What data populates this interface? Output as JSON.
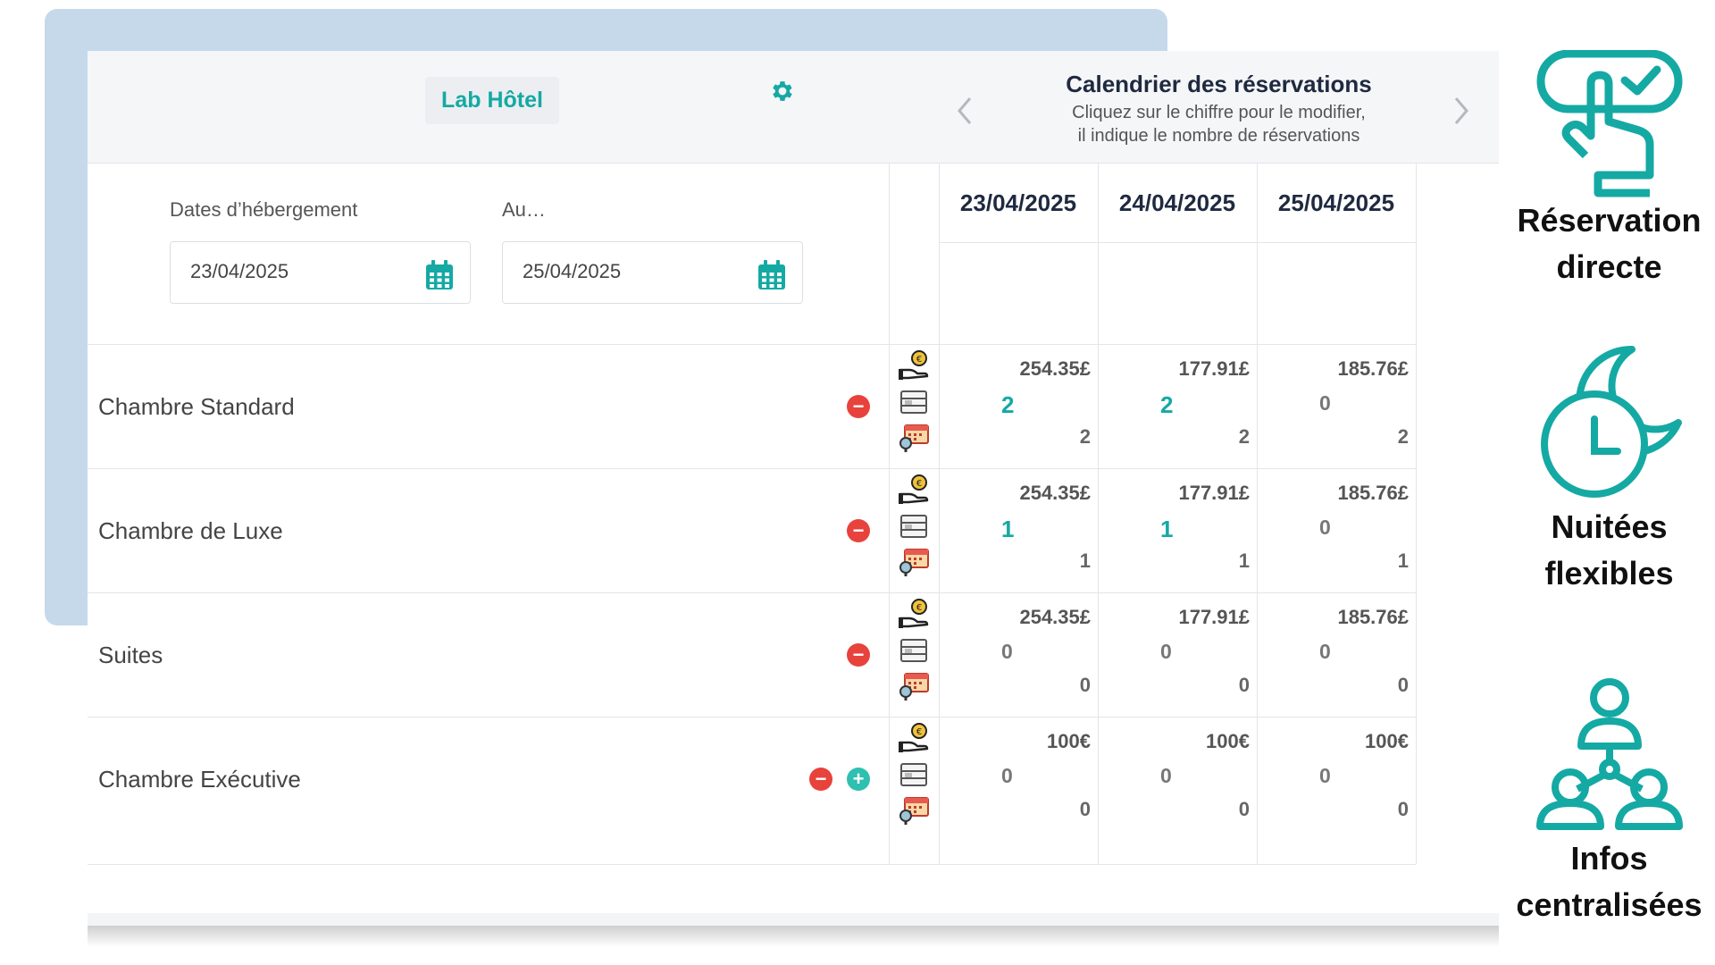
{
  "header": {
    "hotel_name": "Lab Hôtel",
    "calendar_title": "Calendrier des réservations",
    "calendar_subtitle_1": "Cliquez sur le chiffre pour le modifier,",
    "calendar_subtitle_2": "il indique le nombre de réservations"
  },
  "dates": {
    "from_label": "Dates d’hébergement",
    "from_value": "23/04/2025",
    "to_label": "Au…",
    "to_value": "25/04/2025"
  },
  "columns": [
    "23/04/2025",
    "24/04/2025",
    "25/04/2025"
  ],
  "rooms": [
    {
      "name": "Chambre Standard",
      "cells": [
        {
          "price": "254.35£",
          "count": "2",
          "total": "2"
        },
        {
          "price": "177.91£",
          "count": "2",
          "total": "2"
        },
        {
          "price": "185.76£",
          "count": "0",
          "total": "2"
        }
      ]
    },
    {
      "name": "Chambre de Luxe",
      "cells": [
        {
          "price": "254.35£",
          "count": "1",
          "total": "1"
        },
        {
          "price": "177.91£",
          "count": "1",
          "total": "1"
        },
        {
          "price": "185.76£",
          "count": "0",
          "total": "1"
        }
      ]
    },
    {
      "name": "Suites",
      "cells": [
        {
          "price": "254.35£",
          "count": "0",
          "total": "0"
        },
        {
          "price": "177.91£",
          "count": "0",
          "total": "0"
        },
        {
          "price": "185.76£",
          "count": "0",
          "total": "0"
        }
      ]
    },
    {
      "name": "Chambre Exécutive",
      "cells": [
        {
          "price": "100€",
          "count": "0",
          "total": "0"
        },
        {
          "price": "100€",
          "count": "0",
          "total": "0"
        },
        {
          "price": "100€",
          "count": "0",
          "total": "0"
        }
      ]
    }
  ],
  "features": [
    {
      "line1": "Réservation",
      "line2": "directe",
      "icon": "touch-check-icon"
    },
    {
      "line1": "Nuitées",
      "line2": "flexibles",
      "icon": "clock-moon-icon"
    },
    {
      "line1": "Infos",
      "line2": "centralisées",
      "icon": "network-people-icon"
    }
  ],
  "colors": {
    "accent": "#15a9a4",
    "minus": "#e8423c",
    "plus": "#2ec0b0",
    "backdrop": "#c5d9ea"
  }
}
